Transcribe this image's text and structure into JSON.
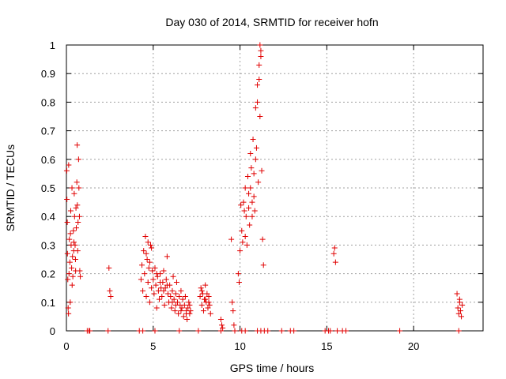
{
  "chart_data": {
    "type": "scatter",
    "title": "Day 030 of 2014, SRMTID for receiver hofn",
    "xlabel": "GPS time / hours",
    "ylabel": "SRMTID / TECUs",
    "xlim": [
      0,
      24
    ],
    "ylim": [
      0,
      1
    ],
    "xticks": [
      "0",
      "5",
      "10",
      "15",
      "20"
    ],
    "yticks": [
      "0",
      "0.1",
      "0.2",
      "0.3",
      "0.4",
      "0.5",
      "0.6",
      "0.7",
      "0.8",
      "0.9",
      "1"
    ],
    "grid": true,
    "marker": "plus",
    "color": "#e00000",
    "series": [
      {
        "name": "hofn",
        "points": [
          [
            0.02,
            0.56
          ],
          [
            0.05,
            0.38
          ],
          [
            0.06,
            0.27
          ],
          [
            0.08,
            0.18
          ],
          [
            0.1,
            0.08
          ],
          [
            0.12,
            0.06
          ],
          [
            0.15,
            0.2
          ],
          [
            0.17,
            0.32
          ],
          [
            0.2,
            0.24
          ],
          [
            0.22,
            0.1
          ],
          [
            0.25,
            0.42
          ],
          [
            0.27,
            0.3
          ],
          [
            0.3,
            0.22
          ],
          [
            0.32,
            0.5
          ],
          [
            0.35,
            0.26
          ],
          [
            0.37,
            0.19
          ],
          [
            0.4,
            0.35
          ],
          [
            0.42,
            0.28
          ],
          [
            0.45,
            0.48
          ],
          [
            0.47,
            0.4
          ],
          [
            0.5,
            0.3
          ],
          [
            0.52,
            0.25
          ],
          [
            0.55,
            0.43
          ],
          [
            0.57,
            0.36
          ],
          [
            0.6,
            0.52
          ],
          [
            0.62,
            0.65
          ],
          [
            0.65,
            0.28
          ],
          [
            0.67,
            0.38
          ],
          [
            0.7,
            0.6
          ],
          [
            0.72,
            0.5
          ],
          [
            0.75,
            0.4
          ],
          [
            0.77,
            0.21
          ],
          [
            0.8,
            0.19
          ],
          [
            0.03,
            0.46
          ],
          [
            0.13,
            0.58
          ],
          [
            0.23,
            0.34
          ],
          [
            0.33,
            0.16
          ],
          [
            0.43,
            0.31
          ],
          [
            0.53,
            0.21
          ],
          [
            0.63,
            0.44
          ],
          [
            2.45,
            0.22
          ],
          [
            2.5,
            0.14
          ],
          [
            2.55,
            0.12
          ],
          [
            4.3,
            0.18
          ],
          [
            4.35,
            0.23
          ],
          [
            4.4,
            0.14
          ],
          [
            4.45,
            0.28
          ],
          [
            4.5,
            0.2
          ],
          [
            4.55,
            0.33
          ],
          [
            4.6,
            0.12
          ],
          [
            4.65,
            0.25
          ],
          [
            4.7,
            0.17
          ],
          [
            4.75,
            0.22
          ],
          [
            4.8,
            0.1
          ],
          [
            4.85,
            0.3
          ],
          [
            4.9,
            0.15
          ],
          [
            4.95,
            0.21
          ],
          [
            5.0,
            0.18
          ],
          [
            5.05,
            0.13
          ],
          [
            5.1,
            0.22
          ],
          [
            5.15,
            0.16
          ],
          [
            5.2,
            0.08
          ],
          [
            5.25,
            0.19
          ],
          [
            5.3,
            0.14
          ],
          [
            5.35,
            0.11
          ],
          [
            5.4,
            0.2
          ],
          [
            5.45,
            0.15
          ],
          [
            5.5,
            0.12
          ],
          [
            5.55,
            0.17
          ],
          [
            5.6,
            0.21
          ],
          [
            5.65,
            0.09
          ],
          [
            5.7,
            0.15
          ],
          [
            5.75,
            0.18
          ],
          [
            5.8,
            0.26
          ],
          [
            5.85,
            0.13
          ],
          [
            5.9,
            0.1
          ],
          [
            5.95,
            0.16
          ],
          [
            6.0,
            0.12
          ],
          [
            6.05,
            0.08
          ],
          [
            6.1,
            0.14
          ],
          [
            6.15,
            0.19
          ],
          [
            6.2,
            0.11
          ],
          [
            6.25,
            0.07
          ],
          [
            6.3,
            0.13
          ],
          [
            6.35,
            0.17
          ],
          [
            6.4,
            0.1
          ],
          [
            6.45,
            0.06
          ],
          [
            6.5,
            0.12
          ],
          [
            6.55,
            0.09
          ],
          [
            6.6,
            0.14
          ],
          [
            6.65,
            0.08
          ],
          [
            6.7,
            0.11
          ],
          [
            6.75,
            0.05
          ],
          [
            6.8,
            0.09
          ],
          [
            6.85,
            0.12
          ],
          [
            6.9,
            0.07
          ],
          [
            6.95,
            0.04
          ],
          [
            7.0,
            0.08
          ],
          [
            7.05,
            0.1
          ],
          [
            7.1,
            0.06
          ],
          [
            7.15,
            0.07
          ],
          [
            4.6,
            0.27
          ],
          [
            4.7,
            0.31
          ],
          [
            4.8,
            0.24
          ],
          [
            4.9,
            0.29
          ],
          [
            5.2,
            0.2
          ],
          [
            5.4,
            0.17
          ],
          [
            5.6,
            0.14
          ],
          [
            5.8,
            0.16
          ],
          [
            6.1,
            0.1
          ],
          [
            6.3,
            0.09
          ],
          [
            6.6,
            0.07
          ],
          [
            6.9,
            0.06
          ],
          [
            7.1,
            0.09
          ],
          [
            7.7,
            0.12
          ],
          [
            7.75,
            0.15
          ],
          [
            7.8,
            0.09
          ],
          [
            7.85,
            0.13
          ],
          [
            7.9,
            0.07
          ],
          [
            7.95,
            0.11
          ],
          [
            8.0,
            0.16
          ],
          [
            8.05,
            0.1
          ],
          [
            8.1,
            0.13
          ],
          [
            8.15,
            0.08
          ],
          [
            8.2,
            0.12
          ],
          [
            8.25,
            0.09
          ],
          [
            8.3,
            0.06
          ],
          [
            7.8,
            0.14
          ],
          [
            8.0,
            0.11
          ],
          [
            8.2,
            0.1
          ],
          [
            8.9,
            0.04
          ],
          [
            8.95,
            0.02
          ],
          [
            9.0,
            0.01
          ],
          [
            9.5,
            0.32
          ],
          [
            9.55,
            0.1
          ],
          [
            9.6,
            0.07
          ],
          [
            9.65,
            0.02
          ],
          [
            9.9,
            0.2
          ],
          [
            9.95,
            0.17
          ],
          [
            10.0,
            0.28
          ],
          [
            10.05,
            0.44
          ],
          [
            10.1,
            0.35
          ],
          [
            10.15,
            0.31
          ],
          [
            10.2,
            0.45
          ],
          [
            10.25,
            0.42
          ],
          [
            10.3,
            0.5
          ],
          [
            10.35,
            0.4
          ],
          [
            10.4,
            0.3
          ],
          [
            10.45,
            0.54
          ],
          [
            10.5,
            0.48
          ],
          [
            10.55,
            0.37
          ],
          [
            10.6,
            0.62
          ],
          [
            10.65,
            0.57
          ],
          [
            10.7,
            0.45
          ],
          [
            10.75,
            0.67
          ],
          [
            10.8,
            0.55
          ],
          [
            10.85,
            0.42
          ],
          [
            10.9,
            0.78
          ],
          [
            10.95,
            0.64
          ],
          [
            11.0,
            0.86
          ],
          [
            11.05,
            0.52
          ],
          [
            11.1,
            0.93
          ],
          [
            11.15,
            0.75
          ],
          [
            11.2,
            0.96
          ],
          [
            11.25,
            0.56
          ],
          [
            11.3,
            0.32
          ],
          [
            11.35,
            0.23
          ],
          [
            10.6,
            0.5
          ],
          [
            10.7,
            0.4
          ],
          [
            10.8,
            0.47
          ],
          [
            10.9,
            0.6
          ],
          [
            11.0,
            0.8
          ],
          [
            11.1,
            0.88
          ],
          [
            11.15,
            1.0
          ],
          [
            11.2,
            0.98
          ],
          [
            10.5,
            0.43
          ],
          [
            10.3,
            0.33
          ],
          [
            15.4,
            0.27
          ],
          [
            15.45,
            0.29
          ],
          [
            15.5,
            0.24
          ],
          [
            22.5,
            0.13
          ],
          [
            22.55,
            0.08
          ],
          [
            22.6,
            0.06
          ],
          [
            22.65,
            0.1
          ],
          [
            22.7,
            0.07
          ],
          [
            22.75,
            0.05
          ],
          [
            22.8,
            0.09
          ],
          [
            22.65,
            0.11
          ],
          [
            1.2,
            0.0
          ],
          [
            1.3,
            0.0
          ],
          [
            1.35,
            0.0
          ],
          [
            2.4,
            0.0
          ],
          [
            4.2,
            0.0
          ],
          [
            4.4,
            0.0
          ],
          [
            5.1,
            0.0
          ],
          [
            6.5,
            0.0
          ],
          [
            7.6,
            0.0
          ],
          [
            8.9,
            0.0
          ],
          [
            9.7,
            0.0
          ],
          [
            10.1,
            0.0
          ],
          [
            10.3,
            0.0
          ],
          [
            11.0,
            0.0
          ],
          [
            11.2,
            0.0
          ],
          [
            11.4,
            0.0
          ],
          [
            11.6,
            0.0
          ],
          [
            12.4,
            0.0
          ],
          [
            12.9,
            0.0
          ],
          [
            13.1,
            0.0
          ],
          [
            14.9,
            0.0
          ],
          [
            15.1,
            0.0
          ],
          [
            15.2,
            0.0
          ],
          [
            15.6,
            0.0
          ],
          [
            15.9,
            0.0
          ],
          [
            16.1,
            0.0
          ],
          [
            19.2,
            0.0
          ],
          [
            22.6,
            0.0
          ]
        ]
      }
    ]
  }
}
